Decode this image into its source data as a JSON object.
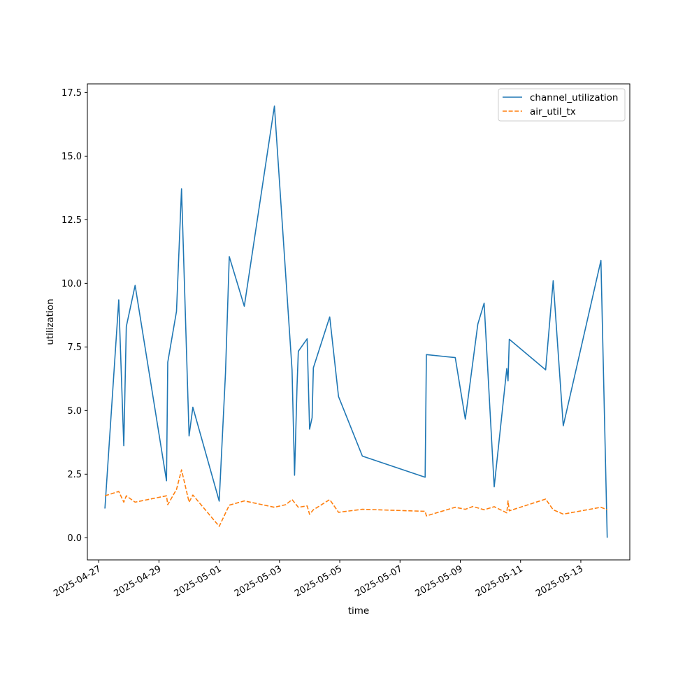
{
  "chart_data": {
    "type": "line",
    "xlabel": "time",
    "ylabel": "utilization",
    "x_scale": "time",
    "xlim": [
      "2025-04-26T15:00",
      "2025-05-14T15:00"
    ],
    "ylim": [
      -0.87,
      17.84
    ],
    "x_ticks": [
      "2025-04-27",
      "2025-04-29",
      "2025-05-01",
      "2025-05-03",
      "2025-05-05",
      "2025-05-07",
      "2025-05-09",
      "2025-05-11",
      "2025-05-13"
    ],
    "y_ticks": [
      "0.0",
      "2.5",
      "5.0",
      "7.5",
      "10.0",
      "12.5",
      "15.0",
      "17.5"
    ],
    "grid": false,
    "legend_position": "top-right",
    "series": [
      {
        "name": "channel_utilization",
        "color": "#1f77b4",
        "linestyle": "solid",
        "x": [
          "2025-04-27T05:00",
          "2025-04-27T16:00",
          "2025-04-27T20:00",
          "2025-04-27T22:00",
          "2025-04-28T05:00",
          "2025-04-29T06:00",
          "2025-04-29T07:00",
          "2025-04-29T14:00",
          "2025-04-29T18:00",
          "2025-04-30T00:00",
          "2025-04-30T03:00",
          "2025-05-01T00:00",
          "2025-05-01T05:00",
          "2025-05-01T08:00",
          "2025-05-01T20:00",
          "2025-05-02T20:00",
          "2025-05-03T10:00",
          "2025-05-03T12:00",
          "2025-05-03T14:00",
          "2025-05-03T15:00",
          "2025-05-03T22:00",
          "2025-05-04T00:00",
          "2025-05-04T02:00",
          "2025-05-04T03:00",
          "2025-05-04T16:00",
          "2025-05-04T23:00",
          "2025-05-05T18:00",
          "2025-05-07T20:00",
          "2025-05-07T21:00",
          "2025-05-08T20:00",
          "2025-05-09T04:00",
          "2025-05-09T14:00",
          "2025-05-09T19:00",
          "2025-05-10T03:00",
          "2025-05-10T13:00",
          "2025-05-10T14:00",
          "2025-05-10T15:00",
          "2025-05-11T20:00",
          "2025-05-12T02:00",
          "2025-05-12T10:00",
          "2025-05-13T16:00",
          "2025-05-13T21:00"
        ],
        "y": [
          1.15,
          9.35,
          3.62,
          8.3,
          9.92,
          2.24,
          6.9,
          8.9,
          13.72,
          4.0,
          5.13,
          1.44,
          6.48,
          11.05,
          9.1,
          16.97,
          6.6,
          2.46,
          6.0,
          7.33,
          7.82,
          4.27,
          4.72,
          6.68,
          8.68,
          5.55,
          3.21,
          2.38,
          7.2,
          7.08,
          4.66,
          8.4,
          9.22,
          2.0,
          6.65,
          6.17,
          7.8,
          6.6,
          10.1,
          4.4,
          10.9,
          0.0
        ]
      },
      {
        "name": "air_util_tx",
        "color": "#ff7f0e",
        "linestyle": "dashed",
        "x": [
          "2025-04-27T05:00",
          "2025-04-27T16:00",
          "2025-04-27T20:00",
          "2025-04-27T22:00",
          "2025-04-28T05:00",
          "2025-04-29T06:00",
          "2025-04-29T07:00",
          "2025-04-29T14:00",
          "2025-04-29T18:00",
          "2025-04-30T00:00",
          "2025-04-30T03:00",
          "2025-05-01T00:00",
          "2025-05-01T08:00",
          "2025-05-01T20:00",
          "2025-05-02T20:00",
          "2025-05-03T05:00",
          "2025-05-03T10:00",
          "2025-05-03T15:00",
          "2025-05-03T22:00",
          "2025-05-04T00:00",
          "2025-05-04T03:00",
          "2025-05-04T16:00",
          "2025-05-04T23:00",
          "2025-05-05T18:00",
          "2025-05-07T20:00",
          "2025-05-07T21:00",
          "2025-05-08T20:00",
          "2025-05-09T04:00",
          "2025-05-09T10:00",
          "2025-05-09T19:00",
          "2025-05-10T03:00",
          "2025-05-10T13:00",
          "2025-05-10T14:00",
          "2025-05-10T15:00",
          "2025-05-11T20:00",
          "2025-05-12T02:00",
          "2025-05-12T10:00",
          "2025-05-13T16:00",
          "2025-05-13T21:00"
        ],
        "y": [
          1.65,
          1.82,
          1.4,
          1.65,
          1.4,
          1.65,
          1.3,
          1.9,
          2.67,
          1.4,
          1.68,
          0.45,
          1.28,
          1.45,
          1.2,
          1.3,
          1.5,
          1.2,
          1.25,
          0.92,
          1.1,
          1.5,
          1.0,
          1.12,
          1.04,
          0.86,
          1.2,
          1.12,
          1.23,
          1.1,
          1.22,
          0.98,
          1.45,
          1.06,
          1.52,
          1.1,
          0.93,
          1.2,
          1.1
        ]
      }
    ]
  }
}
